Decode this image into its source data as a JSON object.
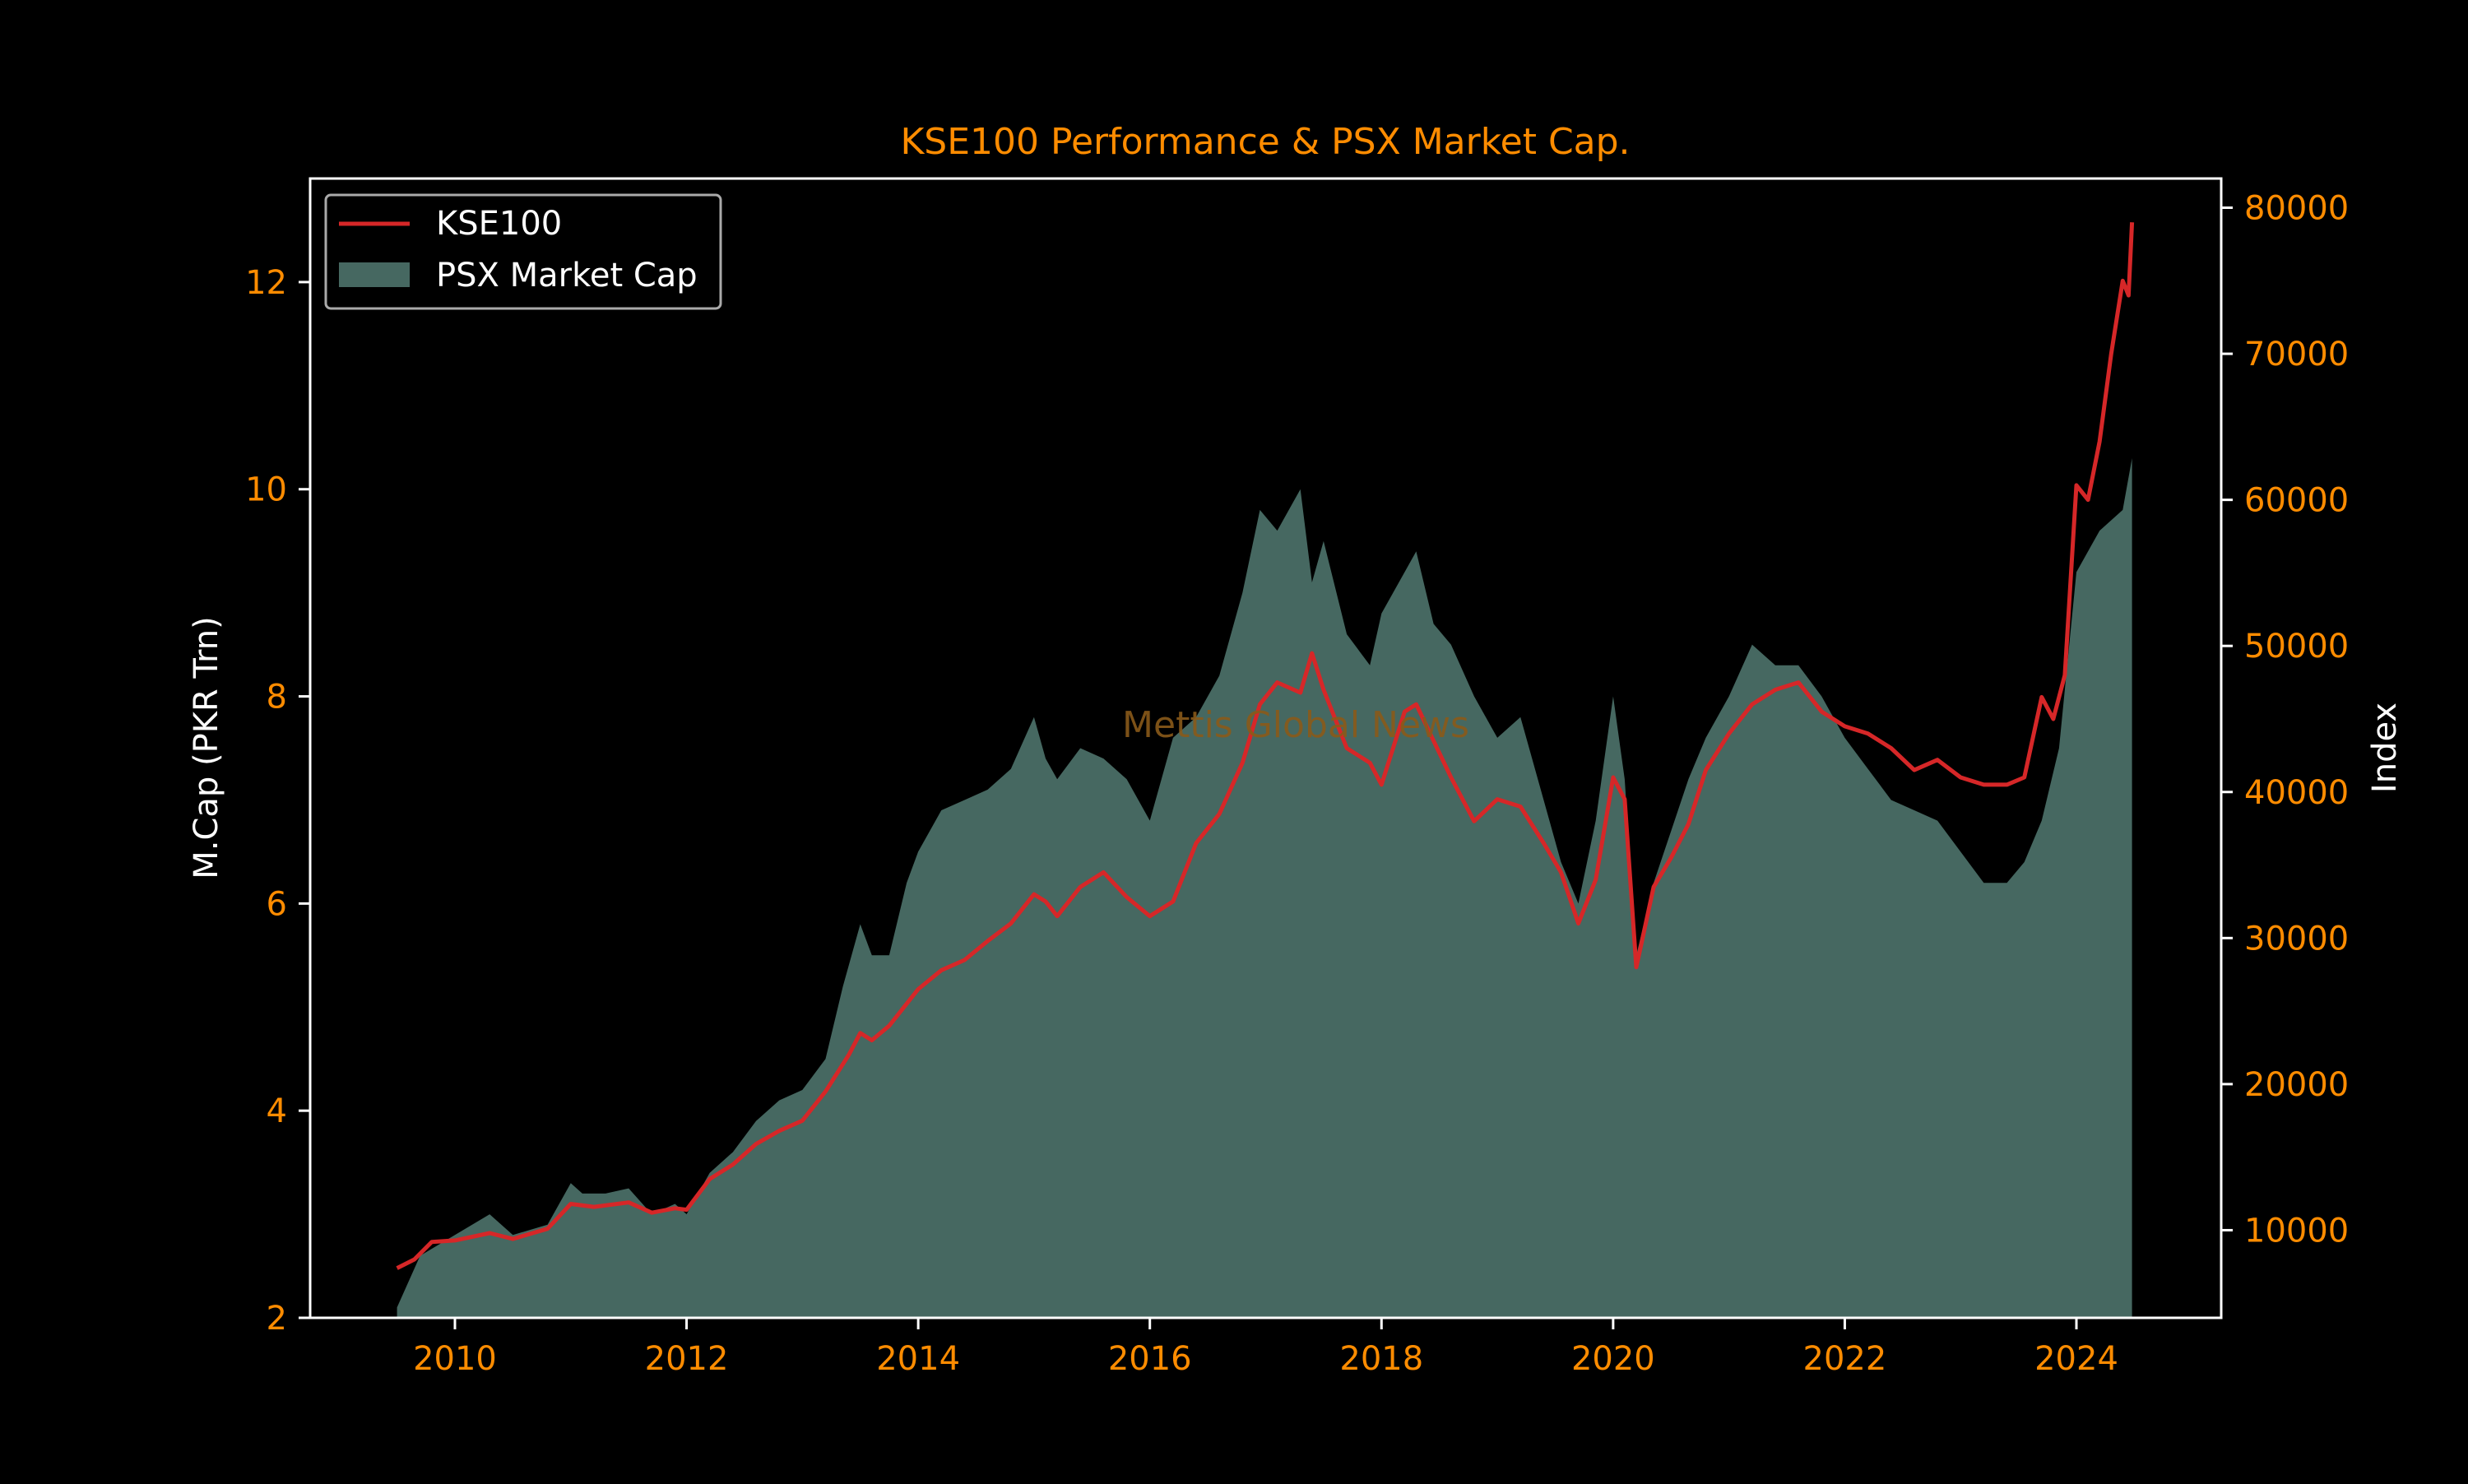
{
  "chart_data": {
    "type": "area",
    "title": "KSE100 Performance & PSX Market Cap.",
    "watermark": "Mettis Global News",
    "y_left_label": "M.Cap (PKR Trn)",
    "y_right_label": "Index",
    "xlim": [
      2008.75,
      2025.25
    ],
    "ylim_left": [
      2,
      13
    ],
    "ylim_right": [
      4000,
      82000
    ],
    "x_ticks": [
      {
        "value": 2010,
        "label": "2010"
      },
      {
        "value": 2012,
        "label": "2012"
      },
      {
        "value": 2014,
        "label": "2014"
      },
      {
        "value": 2016,
        "label": "2016"
      },
      {
        "value": 2018,
        "label": "2018"
      },
      {
        "value": 2020,
        "label": "2020"
      },
      {
        "value": 2022,
        "label": "2022"
      },
      {
        "value": 2024,
        "label": "2024"
      }
    ],
    "y_left_ticks": [
      {
        "value": 2,
        "label": "2"
      },
      {
        "value": 4,
        "label": "4"
      },
      {
        "value": 6,
        "label": "6"
      },
      {
        "value": 8,
        "label": "8"
      },
      {
        "value": 10,
        "label": "10"
      },
      {
        "value": 12,
        "label": "12"
      }
    ],
    "y_right_ticks": [
      {
        "value": 10000,
        "label": "10000"
      },
      {
        "value": 20000,
        "label": "20000"
      },
      {
        "value": 30000,
        "label": "30000"
      },
      {
        "value": 40000,
        "label": "40000"
      },
      {
        "value": 50000,
        "label": "50000"
      },
      {
        "value": 60000,
        "label": "60000"
      },
      {
        "value": 70000,
        "label": "70000"
      },
      {
        "value": 80000,
        "label": "80000"
      }
    ],
    "legend": {
      "placement": "top-left",
      "entries": [
        {
          "label": "KSE100",
          "kind": "line",
          "color": "#d62728"
        },
        {
          "label": "PSX Market Cap",
          "kind": "area",
          "color": "#466861"
        }
      ]
    },
    "colors": {
      "background": "#000000",
      "axes": "#ffffff",
      "tick_labels": "#ff8c00",
      "title": "#ff8c00",
      "axis_labels": "#ffffff",
      "watermark": "#8a5a1a",
      "area_fill": "#466861",
      "line": "#d62728"
    },
    "series": [
      {
        "name": "PSX Market Cap",
        "kind": "area",
        "axis": "left",
        "x": [
          2009.5,
          2009.7,
          2010.0,
          2010.3,
          2010.5,
          2010.8,
          2011.0,
          2011.1,
          2011.3,
          2011.5,
          2011.7,
          2011.9,
          2012.0,
          2012.2,
          2012.4,
          2012.6,
          2012.8,
          2013.0,
          2013.2,
          2013.35,
          2013.5,
          2013.6,
          2013.75,
          2013.9,
          2014.0,
          2014.2,
          2014.4,
          2014.6,
          2014.8,
          2015.0,
          2015.1,
          2015.2,
          2015.4,
          2015.6,
          2015.8,
          2016.0,
          2016.2,
          2016.4,
          2016.6,
          2016.8,
          2016.95,
          2017.1,
          2017.3,
          2017.4,
          2017.5,
          2017.7,
          2017.9,
          2018.0,
          2018.2,
          2018.3,
          2018.45,
          2018.6,
          2018.8,
          2019.0,
          2019.2,
          2019.4,
          2019.55,
          2019.7,
          2019.85,
          2020.0,
          2020.1,
          2020.2,
          2020.35,
          2020.5,
          2020.65,
          2020.8,
          2021.0,
          2021.2,
          2021.4,
          2021.6,
          2021.8,
          2022.0,
          2022.2,
          2022.4,
          2022.6,
          2022.8,
          2023.0,
          2023.2,
          2023.4,
          2023.55,
          2023.7,
          2023.85,
          2024.0,
          2024.2,
          2024.4,
          2024.48
        ],
        "y": [
          2.1,
          2.6,
          2.8,
          3.0,
          2.8,
          2.9,
          3.3,
          3.2,
          3.2,
          3.25,
          3.0,
          3.1,
          3.0,
          3.4,
          3.6,
          3.9,
          4.1,
          4.2,
          4.5,
          5.2,
          5.8,
          5.5,
          5.5,
          6.2,
          6.5,
          6.9,
          7.0,
          7.1,
          7.3,
          7.8,
          7.4,
          7.2,
          7.5,
          7.4,
          7.2,
          6.8,
          7.6,
          7.8,
          8.2,
          9.0,
          9.8,
          9.6,
          10.0,
          9.1,
          9.5,
          8.6,
          8.3,
          8.8,
          9.2,
          9.4,
          8.7,
          8.5,
          8.0,
          7.6,
          7.8,
          7.0,
          6.4,
          6.0,
          6.8,
          8.0,
          7.2,
          5.5,
          6.2,
          6.7,
          7.2,
          7.6,
          8.0,
          8.5,
          8.3,
          8.3,
          8.0,
          7.6,
          7.3,
          7.0,
          6.9,
          6.8,
          6.5,
          6.2,
          6.2,
          6.4,
          6.8,
          7.5,
          9.2,
          9.6,
          9.8,
          10.3
        ]
      },
      {
        "name": "KSE100",
        "kind": "line",
        "axis": "right",
        "x": [
          2009.5,
          2009.65,
          2009.8,
          2010.0,
          2010.3,
          2010.5,
          2010.8,
          2011.0,
          2011.2,
          2011.5,
          2011.7,
          2011.9,
          2012.0,
          2012.2,
          2012.4,
          2012.6,
          2012.8,
          2013.0,
          2013.2,
          2013.4,
          2013.5,
          2013.6,
          2013.75,
          2013.9,
          2014.0,
          2014.2,
          2014.4,
          2014.6,
          2014.8,
          2015.0,
          2015.1,
          2015.2,
          2015.4,
          2015.6,
          2015.8,
          2016.0,
          2016.2,
          2016.4,
          2016.6,
          2016.8,
          2016.95,
          2017.1,
          2017.3,
          2017.4,
          2017.5,
          2017.7,
          2017.9,
          2018.0,
          2018.2,
          2018.3,
          2018.45,
          2018.6,
          2018.8,
          2019.0,
          2019.2,
          2019.4,
          2019.55,
          2019.7,
          2019.85,
          2020.0,
          2020.1,
          2020.2,
          2020.35,
          2020.5,
          2020.65,
          2020.8,
          2021.0,
          2021.2,
          2021.4,
          2021.6,
          2021.8,
          2022.0,
          2022.2,
          2022.4,
          2022.6,
          2022.8,
          2023.0,
          2023.2,
          2023.4,
          2023.55,
          2023.7,
          2023.8,
          2023.9,
          2024.0,
          2024.1,
          2024.2,
          2024.3,
          2024.4,
          2024.45,
          2024.48
        ],
        "y": [
          7400,
          8000,
          9200,
          9300,
          9800,
          9400,
          10100,
          11800,
          11600,
          11900,
          11200,
          11500,
          11400,
          13500,
          14500,
          15900,
          16800,
          17500,
          19500,
          22000,
          23500,
          23000,
          24000,
          25500,
          26500,
          27800,
          28500,
          29800,
          31000,
          33000,
          32500,
          31500,
          33500,
          34500,
          32800,
          31500,
          32500,
          36500,
          38500,
          42000,
          46000,
          47500,
          46800,
          49500,
          47000,
          43000,
          42000,
          40500,
          45500,
          46000,
          43500,
          41000,
          38000,
          39500,
          39000,
          36500,
          34500,
          31000,
          34000,
          41000,
          39500,
          28000,
          33500,
          35500,
          37800,
          41500,
          44000,
          46000,
          47000,
          47500,
          45500,
          44500,
          44000,
          43000,
          41500,
          42200,
          41000,
          40500,
          40500,
          41000,
          46500,
          45000,
          48000,
          61000,
          60000,
          64000,
          70000,
          75000,
          74000,
          79000
        ]
      }
    ]
  }
}
